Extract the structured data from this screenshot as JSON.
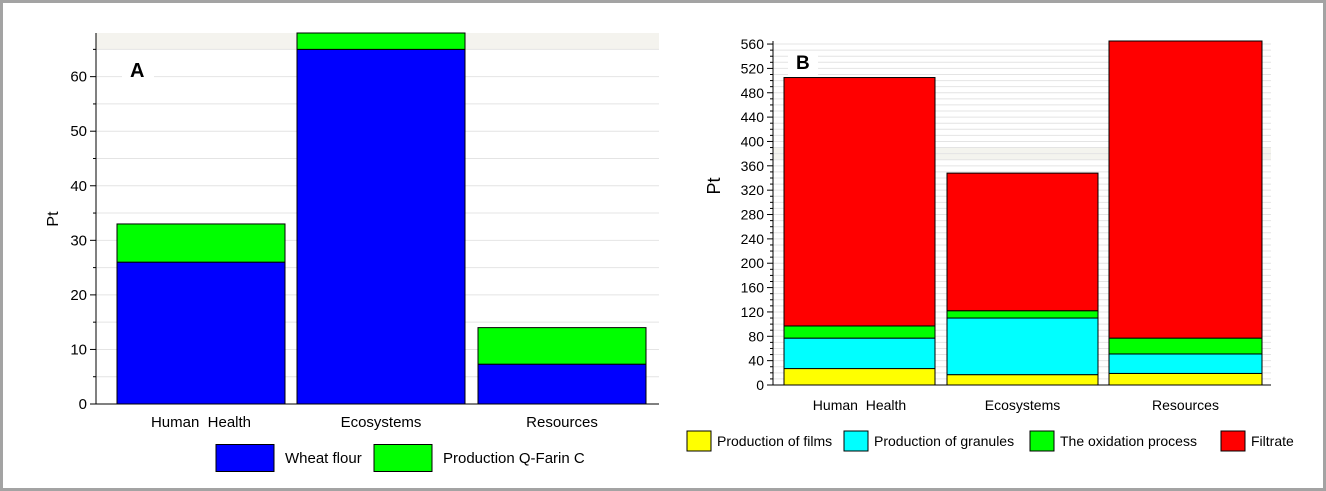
{
  "chart_data": [
    {
      "type": "bar",
      "stacked": true,
      "panel_label": "A",
      "title": "",
      "xlabel": "",
      "ylabel": "Pt",
      "ylim": [
        0,
        68
      ],
      "yticks": [
        0,
        10,
        20,
        30,
        40,
        50,
        60
      ],
      "grid": true,
      "legend_position": "bottom",
      "categories": [
        "Human  Health",
        "Ecosystems",
        "Resources"
      ],
      "series": [
        {
          "name": "Wheat flour",
          "color": "#0000ff",
          "values": [
            26.0,
            65.0,
            7.3
          ]
        },
        {
          "name": "Production Q-Farin C",
          "color": "#00ff00",
          "values": [
            7.0,
            3.0,
            6.7
          ]
        }
      ]
    },
    {
      "type": "bar",
      "stacked": true,
      "panel_label": "B",
      "title": "",
      "xlabel": "",
      "ylabel": "Pt",
      "ylim": [
        0,
        565
      ],
      "yticks": [
        0,
        40,
        80,
        120,
        160,
        200,
        240,
        280,
        320,
        360,
        400,
        440,
        480,
        520,
        560
      ],
      "grid": true,
      "legend_position": "bottom",
      "categories": [
        "Human  Health",
        "Ecosystems",
        "Resources"
      ],
      "series": [
        {
          "name": "Production of films",
          "color": "#ffff00",
          "values": [
            27,
            17,
            19
          ]
        },
        {
          "name": "Production of granules",
          "color": "#00ffff",
          "values": [
            50,
            93,
            32
          ]
        },
        {
          "name": "The oxidation process",
          "color": "#00ff00",
          "values": [
            20,
            12,
            26
          ]
        },
        {
          "name": "Filtrate",
          "color": "#ff0000",
          "values": [
            408,
            226,
            488
          ]
        }
      ]
    }
  ]
}
